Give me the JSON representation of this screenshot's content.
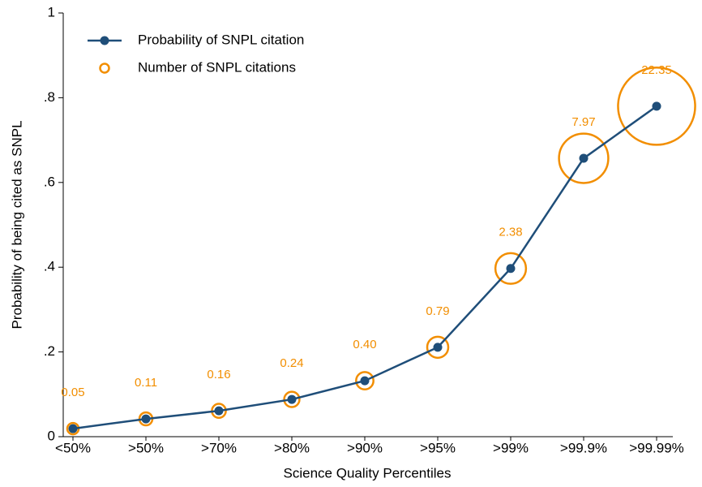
{
  "chart_data": {
    "type": "line",
    "xlabel": "Science Quality Percentiles",
    "ylabel": "Probability of being cited as SNPL",
    "categories": [
      "<50%",
      ">50%",
      ">70%",
      ">80%",
      ">90%",
      ">95%",
      ">99%",
      ">99.9%",
      ">99.99%"
    ],
    "series": [
      {
        "name": "Probability of SNPL citation",
        "color": "#1f4e79",
        "values": [
          0.019,
          0.042,
          0.061,
          0.088,
          0.132,
          0.211,
          0.397,
          0.657,
          0.78
        ]
      },
      {
        "name": "Number of SNPL citations",
        "color": "#f28e00",
        "values": [
          0.05,
          0.11,
          0.16,
          0.24,
          0.4,
          0.79,
          2.38,
          7.97,
          22.35
        ],
        "value_labels": [
          "0.05",
          "0.11",
          "0.16",
          "0.24",
          "0.40",
          "0.79",
          "2.38",
          "7.97",
          "22.35"
        ]
      }
    ],
    "ylim": [
      0,
      1
    ],
    "yticks": [
      0,
      {
        "value": 0.2,
        "label": ".2"
      },
      {
        "value": 0.4,
        "label": ".4"
      },
      {
        "value": 0.6,
        "label": ".6"
      },
      {
        "value": 0.8,
        "label": ".8"
      },
      1
    ],
    "legend": "top-left"
  }
}
